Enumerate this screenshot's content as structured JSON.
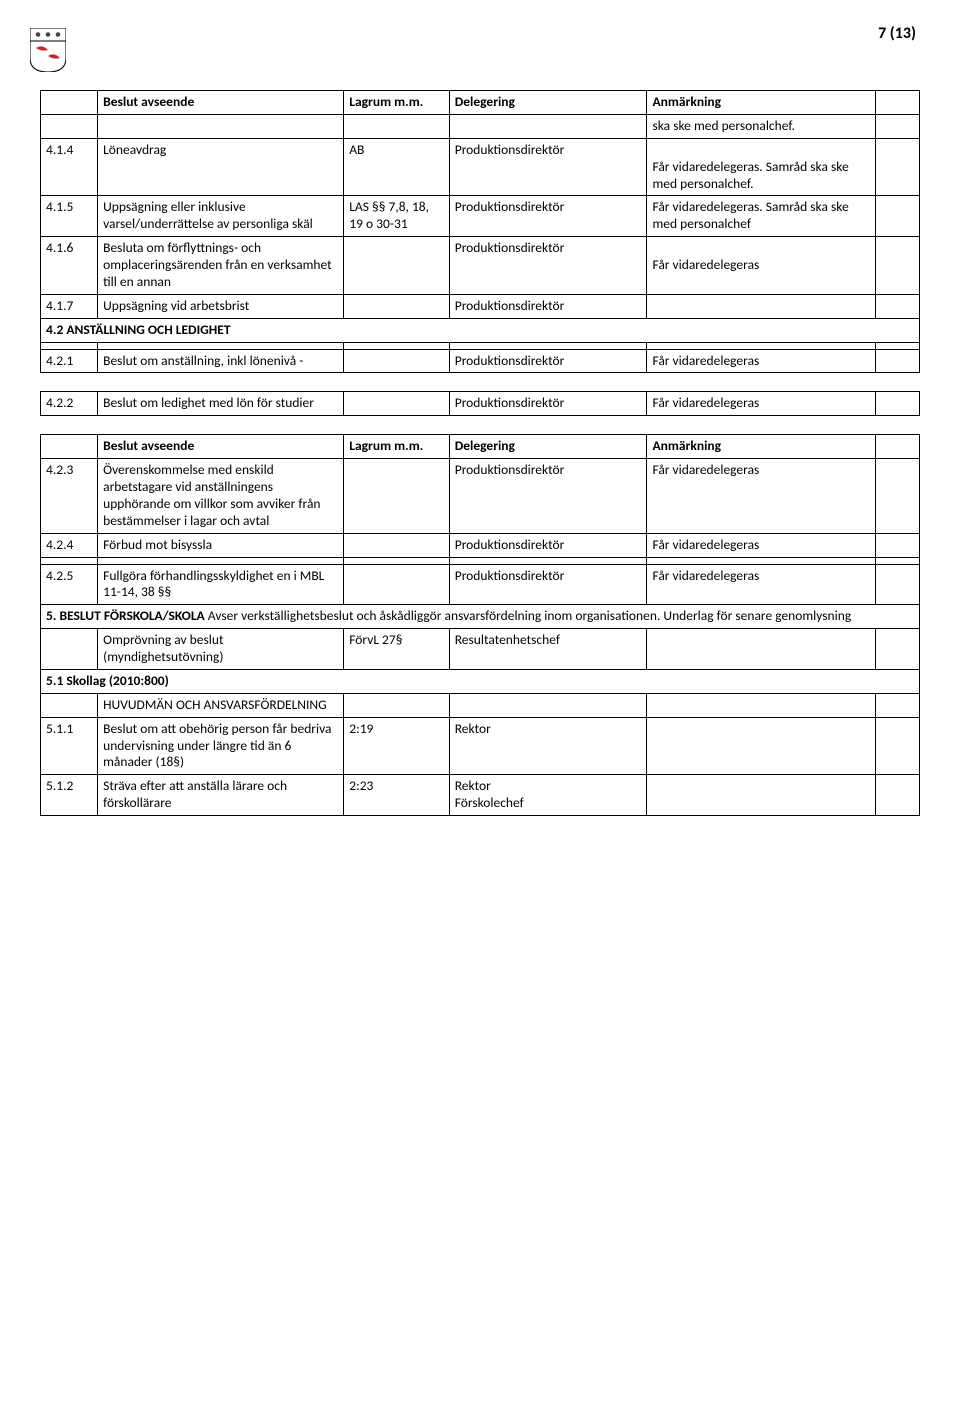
{
  "pageNumber": "7 (13)",
  "logo": {
    "top_bg": "#ffffff",
    "icon_color": "#444444",
    "swallow_color": "#c62828"
  },
  "tables": [
    {
      "rows": [
        {
          "type": "header",
          "cells": [
            "",
            "Beslut avseende",
            "Lagrum m.m.",
            "Delegering",
            "Anmärkning",
            ""
          ]
        },
        {
          "type": "data",
          "cells": [
            "",
            "",
            "",
            "",
            "ska ske med personalchef.",
            ""
          ]
        },
        {
          "type": "data",
          "cells": [
            "4.1.4",
            "Löneavdrag",
            "AB",
            "Produktionsdirektör",
            "\nFår vidaredelegeras. Samråd ska ske med personalchef.",
            ""
          ]
        },
        {
          "type": "data",
          "cells": [
            "4.1.5",
            "Uppsägning eller inklusive varsel/underrättelse av personliga skäl",
            "LAS §§ 7,8, 18, 19 o 30-31",
            "Produktionsdirektör",
            "Får vidaredelegeras. Samråd ska ske med personalchef",
            ""
          ]
        },
        {
          "type": "data",
          "cells": [
            "4.1.6",
            "Besluta om förflyttnings- och omplaceringsärenden från en verksamhet till en annan",
            "",
            "Produktionsdirektör",
            "\nFår vidaredelegeras",
            ""
          ]
        },
        {
          "type": "data",
          "cells": [
            "4.1.7",
            "Uppsägning vid arbetsbrist",
            "",
            "Produktionsdirektör",
            "",
            ""
          ]
        },
        {
          "type": "section",
          "text": "4.2 ANSTÄLLNING OCH LEDIGHET",
          "span": 6
        },
        {
          "type": "data",
          "cells": [
            "",
            "",
            "",
            "",
            "",
            ""
          ]
        },
        {
          "type": "data",
          "cells": [
            "4.2.1",
            "Beslut om anställning, inkl lönenivå -",
            "",
            "Produktionsdirektör",
            "Får vidaredelegeras",
            ""
          ]
        }
      ]
    },
    {
      "rows": [
        {
          "type": "data",
          "cells": [
            "4.2.2",
            "Beslut om ledighet med lön för studier",
            "",
            "Produktionsdirektör",
            "Får vidaredelegeras",
            ""
          ]
        }
      ]
    },
    {
      "rows": [
        {
          "type": "header",
          "cells": [
            "",
            "Beslut avseende",
            "Lagrum m.m.",
            "Delegering",
            "Anmärkning",
            ""
          ]
        },
        {
          "type": "data",
          "cells": [
            "4.2.3",
            "Överenskommelse med enskild arbetstagare vid anställningens upphörande om villkor som avviker från bestämmelser i lagar och avtal",
            "",
            "Produktionsdirektör",
            "Får vidaredelegeras",
            ""
          ]
        },
        {
          "type": "data",
          "cells": [
            "4.2.4",
            "Förbud mot bisyssla",
            "",
            "Produktionsdirektör",
            "Får vidaredelegeras",
            ""
          ]
        },
        {
          "type": "data",
          "cells": [
            "",
            "",
            "",
            "",
            "",
            ""
          ]
        },
        {
          "type": "data",
          "cells": [
            "4.2.5",
            "Fullgöra förhandlingsskyldighet en i MBL 11-14, 38 §§",
            "",
            "Produktionsdirektör",
            "Får vidaredelegeras",
            ""
          ]
        },
        {
          "type": "section-mixed",
          "bold": "5. BESLUT FÖRSKOLA/SKOLA",
          "rest": " Avser verkställighetsbeslut och åskådliggör ansvarsfördelning inom organisationen. Underlag för senare genomlysning",
          "span": 6
        },
        {
          "type": "data",
          "cells": [
            "",
            "Omprövning av beslut (myndighetsutövning)",
            "FörvL 27§",
            "Resultatenhetschef",
            "",
            ""
          ]
        },
        {
          "type": "section",
          "text": "5.1 Skollag (2010:800)",
          "span": 6
        },
        {
          "type": "data",
          "cells": [
            "",
            "HUVUDMÄN OCH ANSVARSFÖRDELNING",
            "",
            "",
            "",
            ""
          ]
        },
        {
          "type": "data",
          "cells": [
            "5.1.1",
            "Beslut om att obehörig person får bedriva undervisning under längre tid än 6 månader (18§)",
            "2:19",
            "Rektor",
            "",
            ""
          ]
        },
        {
          "type": "data",
          "cells": [
            "5.1.2",
            "Sträva efter att anställa lärare och förskollärare",
            "2:23",
            "Rektor\nFörskolechef",
            "",
            ""
          ]
        }
      ]
    }
  ]
}
